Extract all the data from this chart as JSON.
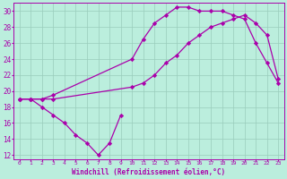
{
  "xlabel": "Windchill (Refroidissement éolien,°C)",
  "bg_color": "#bbeedd",
  "line_color": "#aa00aa",
  "grid_color": "#99ccbb",
  "xlim": [
    -0.5,
    23.5
  ],
  "ylim": [
    11.5,
    31
  ],
  "xticks": [
    0,
    1,
    2,
    3,
    4,
    5,
    6,
    7,
    8,
    9,
    10,
    11,
    12,
    13,
    14,
    15,
    16,
    17,
    18,
    19,
    20,
    21,
    22,
    23
  ],
  "yticks": [
    12,
    14,
    16,
    18,
    20,
    22,
    24,
    26,
    28,
    30
  ],
  "series1_x": [
    0,
    1,
    2,
    3,
    4,
    5,
    6,
    7,
    8,
    9
  ],
  "series1_y": [
    19,
    19,
    18,
    17,
    16,
    14.5,
    13.5,
    12,
    13.5,
    17
  ],
  "series2_x": [
    0,
    1,
    2,
    3,
    10,
    11,
    12,
    13,
    14,
    15,
    16,
    17,
    18,
    19,
    20,
    21,
    22,
    23
  ],
  "series2_y": [
    19,
    19,
    19,
    19.5,
    24,
    26.5,
    28.5,
    29.5,
    30.5,
    30.5,
    30,
    30,
    30,
    29.5,
    29,
    26,
    23.5,
    21
  ],
  "series3_x": [
    0,
    1,
    2,
    3,
    10,
    11,
    12,
    13,
    14,
    15,
    16,
    17,
    18,
    19,
    20,
    21,
    22,
    23
  ],
  "series3_y": [
    19,
    19,
    19,
    19,
    20.5,
    21,
    22,
    23.5,
    24.5,
    26,
    27,
    28,
    28.5,
    29,
    29.5,
    28.5,
    27,
    21.5
  ]
}
